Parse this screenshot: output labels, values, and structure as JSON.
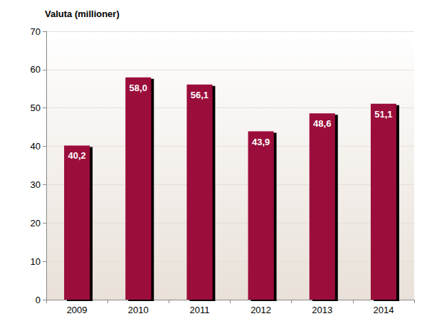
{
  "chart_data": {
    "type": "bar",
    "title": "Valuta (millioner)",
    "categories": [
      "2009",
      "2010",
      "2011",
      "2012",
      "2013",
      "2014"
    ],
    "values": [
      40.2,
      58.0,
      56.1,
      43.9,
      48.6,
      51.1
    ],
    "value_labels": [
      "40,2",
      "58,0",
      "56,1",
      "43,9",
      "48,6",
      "51,1"
    ],
    "color": "#9b0b3b",
    "ylim": [
      0,
      70
    ],
    "yticks": [
      0,
      10,
      20,
      30,
      40,
      50,
      60,
      70
    ],
    "grid": true,
    "data_labels": true
  }
}
